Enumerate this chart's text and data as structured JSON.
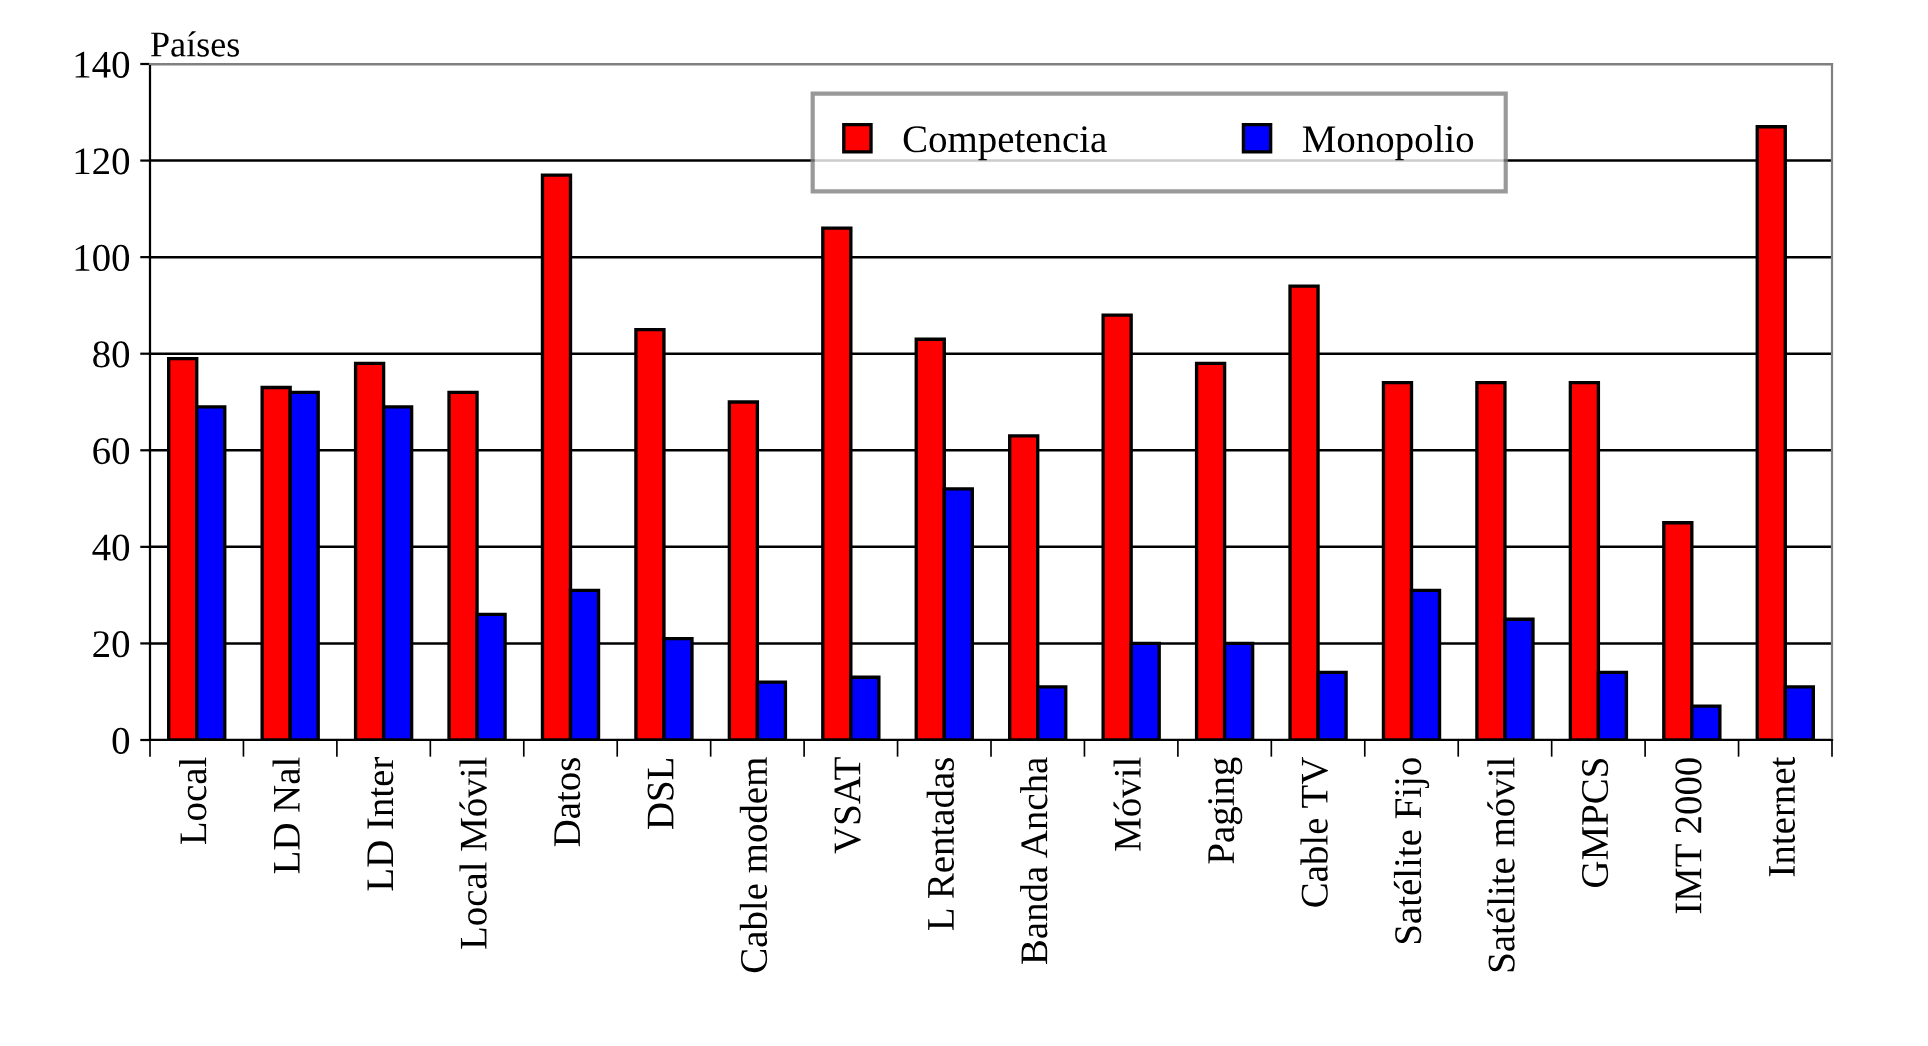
{
  "chart_data": {
    "type": "bar",
    "ylabel": "Países",
    "categories": [
      "Local",
      "LD Nal",
      "LD Inter",
      "Local Móvil",
      "Datos",
      "DSL",
      "Cable modem",
      "VSAT",
      "L Rentadas",
      "Banda Ancha",
      "Móvil",
      "Paging",
      "Cable TV",
      "Satélite Fijo",
      "Satélite móvil",
      "GMPCS",
      "IMT 2000",
      "Internet"
    ],
    "series": [
      {
        "name": "Competencia",
        "color": "#ff0000",
        "values": [
          79,
          73,
          78,
          72,
          117,
          85,
          70,
          106,
          83,
          63,
          88,
          78,
          94,
          74,
          74,
          74,
          45,
          127
        ]
      },
      {
        "name": "Monopolio",
        "color": "#0000ff",
        "values": [
          69,
          72,
          69,
          26,
          31,
          21,
          12,
          13,
          52,
          11,
          20,
          20,
          14,
          31,
          25,
          14,
          7,
          11
        ]
      }
    ],
    "ylim": [
      0,
      140
    ],
    "yticks": [
      0,
      20,
      40,
      60,
      80,
      100,
      120,
      140
    ],
    "grid": "y",
    "legend": "top"
  }
}
